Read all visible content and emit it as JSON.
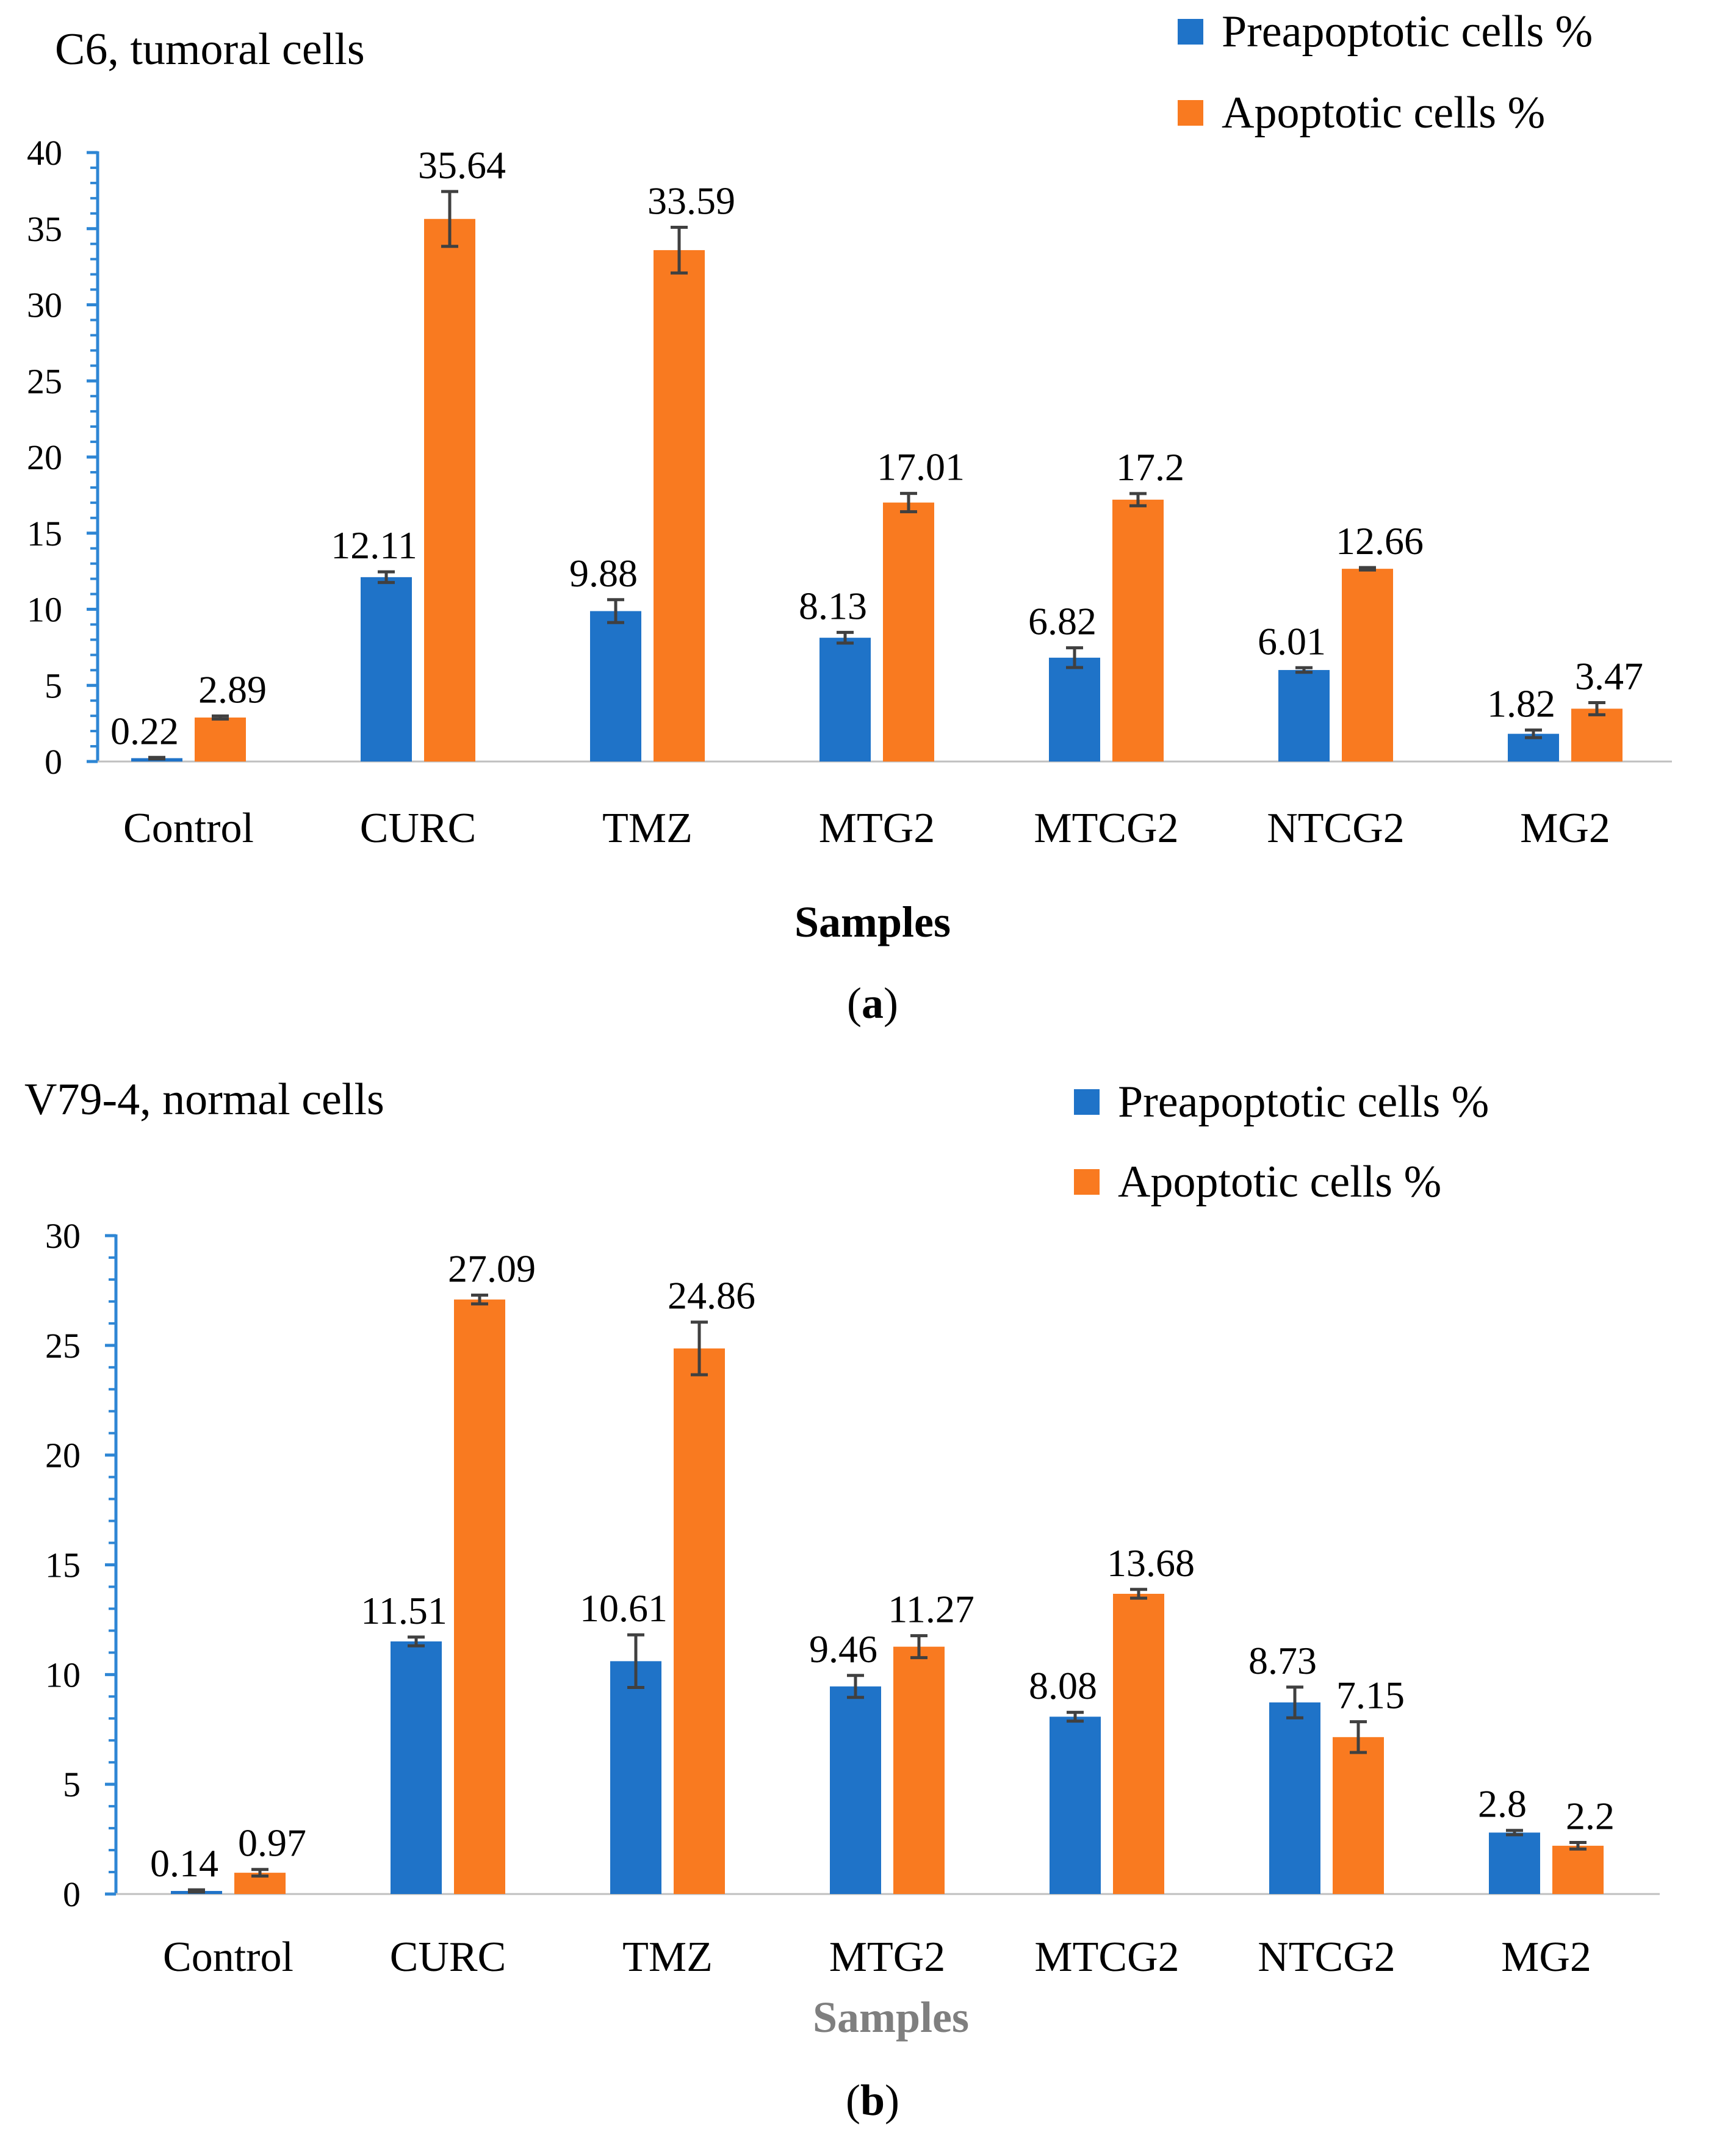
{
  "chart_data": [
    {
      "type": "bar",
      "title": "C6, tumoral cells",
      "caption_letter": "a",
      "xlabel": "Samples",
      "ylabel": "",
      "ylim": [
        0,
        40
      ],
      "ytick_step": 5,
      "categories": [
        "Control",
        "CURC",
        "TMZ",
        "MTG2",
        "MTCG2",
        "NTCG2",
        "MG2"
      ],
      "series": [
        {
          "name": "Preapoptotic cells %",
          "color": "#1f73c8",
          "values": [
            0.22,
            12.11,
            9.88,
            8.13,
            6.82,
            6.01,
            1.82
          ],
          "errors": [
            0.05,
            0.35,
            0.75,
            0.35,
            0.65,
            0.15,
            0.25
          ]
        },
        {
          "name": "Apoptotic cells %",
          "color": "#f97a20",
          "values": [
            2.89,
            35.64,
            33.59,
            17.01,
            17.2,
            12.66,
            3.47
          ],
          "errors": [
            0.1,
            1.8,
            1.5,
            0.6,
            0.4,
            0.08,
            0.4
          ]
        }
      ],
      "legend": "top-right",
      "grid": false
    },
    {
      "type": "bar",
      "title": "V79-4, normal cells",
      "caption_letter": "b",
      "xlabel": "Samples",
      "ylabel": "",
      "ylim": [
        0,
        30
      ],
      "ytick_step": 5,
      "categories": [
        "Control",
        "CURC",
        "TMZ",
        "MTG2",
        "MTCG2",
        "NTCG2",
        "MG2"
      ],
      "series": [
        {
          "name": "Preapoptotic cells %",
          "color": "#1f73c8",
          "values": [
            0.14,
            11.51,
            10.61,
            9.46,
            8.08,
            8.73,
            2.8
          ],
          "errors": [
            0.05,
            0.2,
            1.2,
            0.5,
            0.2,
            0.7,
            0.1
          ]
        },
        {
          "name": "Apoptotic cells %",
          "color": "#f97a20",
          "values": [
            0.97,
            27.09,
            24.86,
            11.27,
            13.68,
            7.15,
            2.2
          ],
          "errors": [
            0.15,
            0.2,
            1.2,
            0.5,
            0.2,
            0.7,
            0.15
          ]
        }
      ],
      "legend": "top-right",
      "grid": false
    }
  ]
}
